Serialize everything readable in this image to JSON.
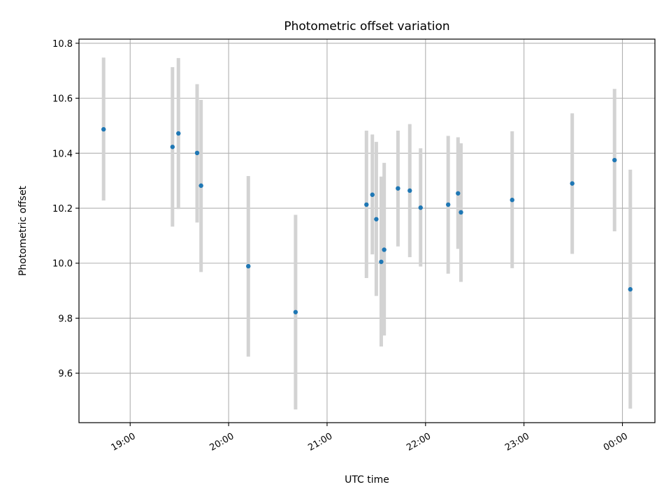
{
  "chart_data": {
    "type": "scatter",
    "title": "Photometric offset variation",
    "xlabel": "UTC time",
    "ylabel": "Photometric offset",
    "x_unit": "hours (UTC)",
    "xlim": [
      18.48,
      24.33
    ],
    "ylim": [
      9.42,
      10.815
    ],
    "x_ticks": [
      {
        "value": 19,
        "label": "19:00"
      },
      {
        "value": 20,
        "label": "20:00"
      },
      {
        "value": 21,
        "label": "21:00"
      },
      {
        "value": 22,
        "label": "22:00"
      },
      {
        "value": 23,
        "label": "23:00"
      },
      {
        "value": 24,
        "label": "00:00"
      }
    ],
    "y_ticks": [
      {
        "value": 9.6,
        "label": "9.6"
      },
      {
        "value": 9.8,
        "label": "9.8"
      },
      {
        "value": 10.0,
        "label": "10.0"
      },
      {
        "value": 10.2,
        "label": "10.2"
      },
      {
        "value": 10.4,
        "label": "10.4"
      },
      {
        "value": 10.6,
        "label": "10.6"
      },
      {
        "value": 10.8,
        "label": "10.8"
      }
    ],
    "grid": true,
    "legend": false,
    "x_tick_rotation": "diagonal",
    "point_color": "#1f77b4",
    "errorbar_color": "#d3d3d3",
    "series": [
      {
        "points": [
          {
            "x": 18.73,
            "y": 10.487,
            "ylow": 10.228,
            "yhigh": 10.748
          },
          {
            "x": 19.43,
            "y": 10.423,
            "ylow": 10.133,
            "yhigh": 10.713
          },
          {
            "x": 19.49,
            "y": 10.472,
            "ylow": 10.197,
            "yhigh": 10.746
          },
          {
            "x": 19.68,
            "y": 10.401,
            "ylow": 10.148,
            "yhigh": 10.651
          },
          {
            "x": 19.72,
            "y": 10.282,
            "ylow": 9.968,
            "yhigh": 10.594
          },
          {
            "x": 20.2,
            "y": 9.989,
            "ylow": 9.66,
            "yhigh": 10.317
          },
          {
            "x": 20.68,
            "y": 9.822,
            "ylow": 9.468,
            "yhigh": 10.176
          },
          {
            "x": 21.4,
            "y": 10.213,
            "ylow": 9.946,
            "yhigh": 10.482
          },
          {
            "x": 21.46,
            "y": 10.249,
            "ylow": 10.032,
            "yhigh": 10.468
          },
          {
            "x": 21.5,
            "y": 10.16,
            "ylow": 9.881,
            "yhigh": 10.441
          },
          {
            "x": 21.55,
            "y": 10.005,
            "ylow": 9.697,
            "yhigh": 10.315
          },
          {
            "x": 21.58,
            "y": 10.049,
            "ylow": 9.737,
            "yhigh": 10.365
          },
          {
            "x": 21.72,
            "y": 10.272,
            "ylow": 10.061,
            "yhigh": 10.482
          },
          {
            "x": 21.84,
            "y": 10.264,
            "ylow": 10.022,
            "yhigh": 10.506
          },
          {
            "x": 21.95,
            "y": 10.202,
            "ylow": 9.988,
            "yhigh": 10.418
          },
          {
            "x": 22.23,
            "y": 10.213,
            "ylow": 9.962,
            "yhigh": 10.463
          },
          {
            "x": 22.33,
            "y": 10.254,
            "ylow": 10.052,
            "yhigh": 10.458
          },
          {
            "x": 22.36,
            "y": 10.185,
            "ylow": 9.932,
            "yhigh": 10.436
          },
          {
            "x": 22.88,
            "y": 10.23,
            "ylow": 9.982,
            "yhigh": 10.48
          },
          {
            "x": 23.49,
            "y": 10.29,
            "ylow": 10.034,
            "yhigh": 10.545
          },
          {
            "x": 23.92,
            "y": 10.375,
            "ylow": 10.116,
            "yhigh": 10.634
          },
          {
            "x": 24.08,
            "y": 9.905,
            "ylow": 9.471,
            "yhigh": 10.34
          }
        ]
      }
    ]
  }
}
